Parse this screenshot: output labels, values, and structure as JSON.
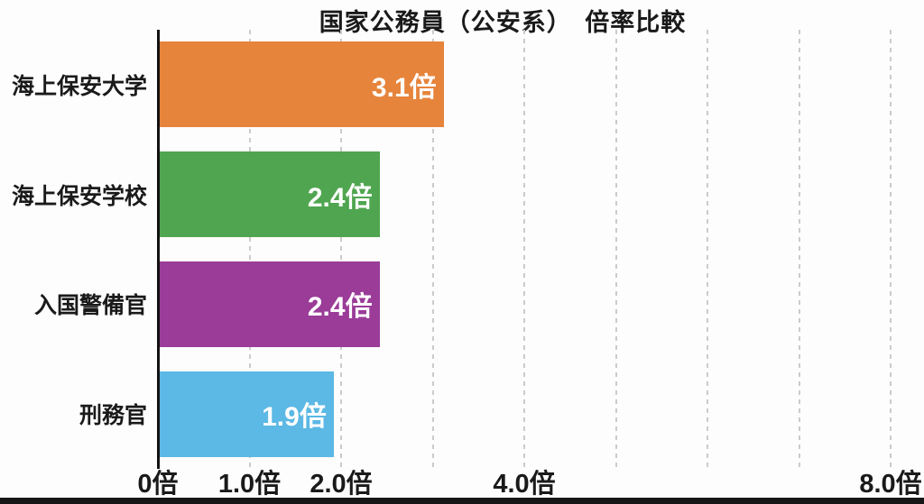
{
  "chart_data": {
    "type": "bar",
    "orientation": "horizontal",
    "title": "国家公務員（公安系）　倍率比較",
    "categories": [
      "海上保安大学",
      "海上保安学校",
      "入国警備官",
      "刑務官"
    ],
    "values": [
      3.1,
      2.4,
      2.4,
      1.9
    ],
    "value_labels": [
      "3.1倍",
      "2.4倍",
      "2.4倍",
      "1.9倍"
    ],
    "bar_colors": [
      "#E6843C",
      "#50A650",
      "#9A3C98",
      "#5CB8E4"
    ],
    "x_ticks": [
      {
        "value": 0,
        "label": "0倍"
      },
      {
        "value": 1,
        "label": "1.0倍"
      },
      {
        "value": 2,
        "label": "2.0倍"
      },
      {
        "value": 4,
        "label": "4.0倍"
      },
      {
        "value": 8,
        "label": "8.0倍"
      }
    ],
    "gridline_values": [
      1,
      2,
      3,
      4,
      5,
      6,
      7,
      8
    ],
    "xlim": [
      0,
      8.35
    ],
    "xlabel": "",
    "ylabel": "",
    "grid": "dashed-vertical",
    "legend": "none",
    "colors": {
      "background": "#FDFDFD",
      "axis_line": "#121212",
      "gridline": "#CBCBCB",
      "text": "#1A1A1A",
      "value_text": "#FFFFFF",
      "bottom_strip": "#161616"
    }
  }
}
